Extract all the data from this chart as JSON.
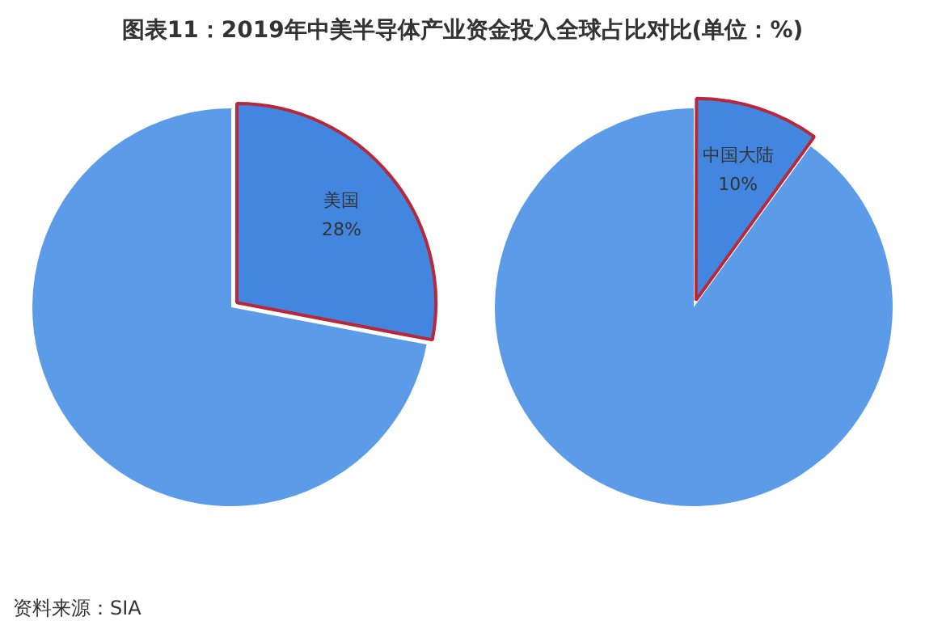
{
  "chart_data": [
    {
      "type": "pie",
      "title": "图表11：2019年中美半导体产业资金投入全球占比对比(单位：%)",
      "categories": [
        "美国",
        null
      ],
      "values": [
        28,
        72
      ],
      "value_labels": [
        "28%",
        null
      ],
      "colors": [
        "#4286e0",
        "#5b9be8"
      ]
    },
    {
      "type": "pie",
      "categories": [
        "中国大陆",
        null
      ],
      "values": [
        10,
        90
      ],
      "value_labels": [
        "10%",
        null
      ],
      "colors": [
        "#4286e0",
        "#5b9be8"
      ],
      "annotations": [
        "资料来源：SIA"
      ]
    }
  ]
}
